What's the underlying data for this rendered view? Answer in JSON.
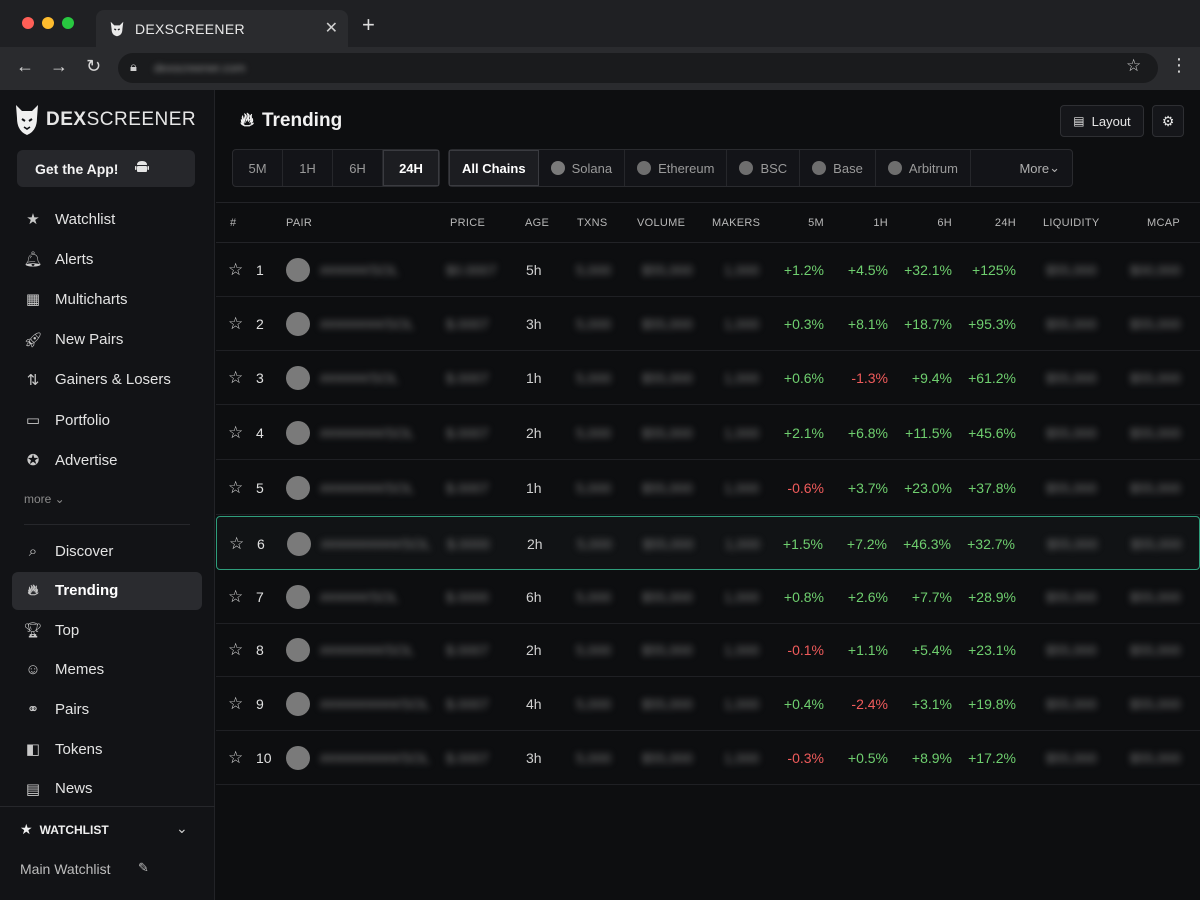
{
  "browser": {
    "tab_title": "DEXSCREENER",
    "url": "dexscreener.com",
    "colors": {
      "red": "#ff5f57",
      "yellow": "#febc2e",
      "green": "#28c840"
    }
  },
  "sidebar": {
    "brand_bold": "DEX",
    "brand_rest": "SCREENER",
    "get_app": "Get the App!",
    "items": [
      {
        "label": "Watchlist",
        "icon": "star-icon"
      },
      {
        "label": "Alerts",
        "icon": "bell-icon"
      },
      {
        "label": "Multicharts",
        "icon": "grid-icon"
      },
      {
        "label": "New Pairs",
        "icon": "rocket-icon"
      },
      {
        "label": "Gainers & Losers",
        "icon": "up-down-arrows-icon"
      },
      {
        "label": "Portfolio",
        "icon": "wallet-icon"
      },
      {
        "label": "Advertise",
        "icon": "badge-star-icon"
      }
    ],
    "more": "more",
    "items2": [
      {
        "label": "Discover",
        "icon": "search-icon"
      },
      {
        "label": "Trending",
        "icon": "flame-icon"
      },
      {
        "label": "Top",
        "icon": "trophy-icon"
      },
      {
        "label": "Memes",
        "icon": "smiley-icon"
      },
      {
        "label": "Pairs",
        "icon": "link-icon"
      },
      {
        "label": "Tokens",
        "icon": "token-icon"
      },
      {
        "label": "News",
        "icon": "newspaper-icon"
      }
    ],
    "watchlist_title": "WATCHLIST",
    "watchlist_main": "Main Watchlist"
  },
  "main": {
    "title": "Trending",
    "layout_label": "Layout",
    "timeframes": [
      "5M",
      "1H",
      "6H",
      "24H"
    ],
    "chains": [
      "All Chains",
      "Solana",
      "Ethereum",
      "BSC",
      "Base",
      "Arbitrum"
    ],
    "chains_more": "More",
    "columns": [
      "#",
      "PAIR",
      "PRICE",
      "AGE",
      "TXNS",
      "VOLUME",
      "MAKERS",
      "5M",
      "1H",
      "6H",
      "24H",
      "LIQUIDITY",
      "MCAP"
    ]
  },
  "rows": [
    {
      "rank": "1",
      "pair": "######/SOL",
      "price": "$0.0007",
      "age": "5h",
      "txns": "5,000",
      "volume": "$55,000",
      "makers": "1,000",
      "m5": "+1.2%",
      "h1": "+4.5%",
      "h6": "+32.1%",
      "h24": "+125%",
      "liq": "$55,000",
      "mcap": "$00,000"
    },
    {
      "rank": "2",
      "pair": "########/SOL",
      "price": "$.0007",
      "age": "3h",
      "txns": "5,000",
      "volume": "$55,000",
      "makers": "1,000",
      "m5": "+0.3%",
      "h1": "+8.1%",
      "h6": "+18.7%",
      "h24": "+95.3%",
      "liq": "$55,000",
      "mcap": "$55,000"
    },
    {
      "rank": "3",
      "pair": "######/SOL",
      "price": "$.0007",
      "age": "1h",
      "txns": "5,000",
      "volume": "$55,000",
      "makers": "1,000",
      "m5": "+0.6%",
      "h1": "-1.3%",
      "h6": "+9.4%",
      "h24": "+61.2%",
      "liq": "$55,000",
      "mcap": "$55,000"
    },
    {
      "rank": "4",
      "pair": "########/SOL",
      "price": "$.0007",
      "age": "2h",
      "txns": "5,000",
      "volume": "$55,000",
      "makers": "1,000",
      "m5": "+2.1%",
      "h1": "+6.8%",
      "h6": "+11.5%",
      "h24": "+45.6%",
      "liq": "$55,000",
      "mcap": "$55,000"
    },
    {
      "rank": "5",
      "pair": "########/SOL",
      "price": "$.0007",
      "age": "1h",
      "txns": "5,000",
      "volume": "$55,000",
      "makers": "1,000",
      "m5": "-0.6%",
      "h1": "+3.7%",
      "h6": "+23.0%",
      "h24": "+37.8%",
      "liq": "$55,000",
      "mcap": "$55,000"
    },
    {
      "rank": "6",
      "pair": "##########/SOL",
      "price": "$.0000",
      "age": "2h",
      "txns": "5,000",
      "volume": "$55,000",
      "makers": "1,000",
      "m5": "+1.5%",
      "h1": "+7.2%",
      "h6": "+46.3%",
      "h24": "+32.7%",
      "liq": "$55,000",
      "mcap": "$55,000"
    },
    {
      "rank": "7",
      "pair": "######/SOL",
      "price": "$.0000",
      "age": "6h",
      "txns": "5,000",
      "volume": "$55,000",
      "makers": "1,000",
      "m5": "+0.8%",
      "h1": "+2.6%",
      "h6": "+7.7%",
      "h24": "+28.9%",
      "liq": "$55,000",
      "mcap": "$55,000"
    },
    {
      "rank": "8",
      "pair": "########/SOL",
      "price": "$.0007",
      "age": "2h",
      "txns": "5,000",
      "volume": "$55,000",
      "makers": "1,000",
      "m5": "-0.1%",
      "h1": "+1.1%",
      "h6": "+5.4%",
      "h24": "+23.1%",
      "liq": "$55,000",
      "mcap": "$55,000"
    },
    {
      "rank": "9",
      "pair": "##########/SOL",
      "price": "$.0007",
      "age": "4h",
      "txns": "5,000",
      "volume": "$55,000",
      "makers": "1,000",
      "m5": "+0.4%",
      "h1": "-2.4%",
      "h6": "+3.1%",
      "h24": "+19.8%",
      "liq": "$55,000",
      "mcap": "$55,000"
    },
    {
      "rank": "10",
      "pair": "##########/SOL",
      "price": "$.0007",
      "age": "3h",
      "txns": "5,000",
      "volume": "$55,000",
      "makers": "1,000",
      "m5": "-0.3%",
      "h1": "+0.5%",
      "h6": "+8.9%",
      "h24": "+17.2%",
      "liq": "$55,000",
      "mcap": "$55,000"
    }
  ]
}
